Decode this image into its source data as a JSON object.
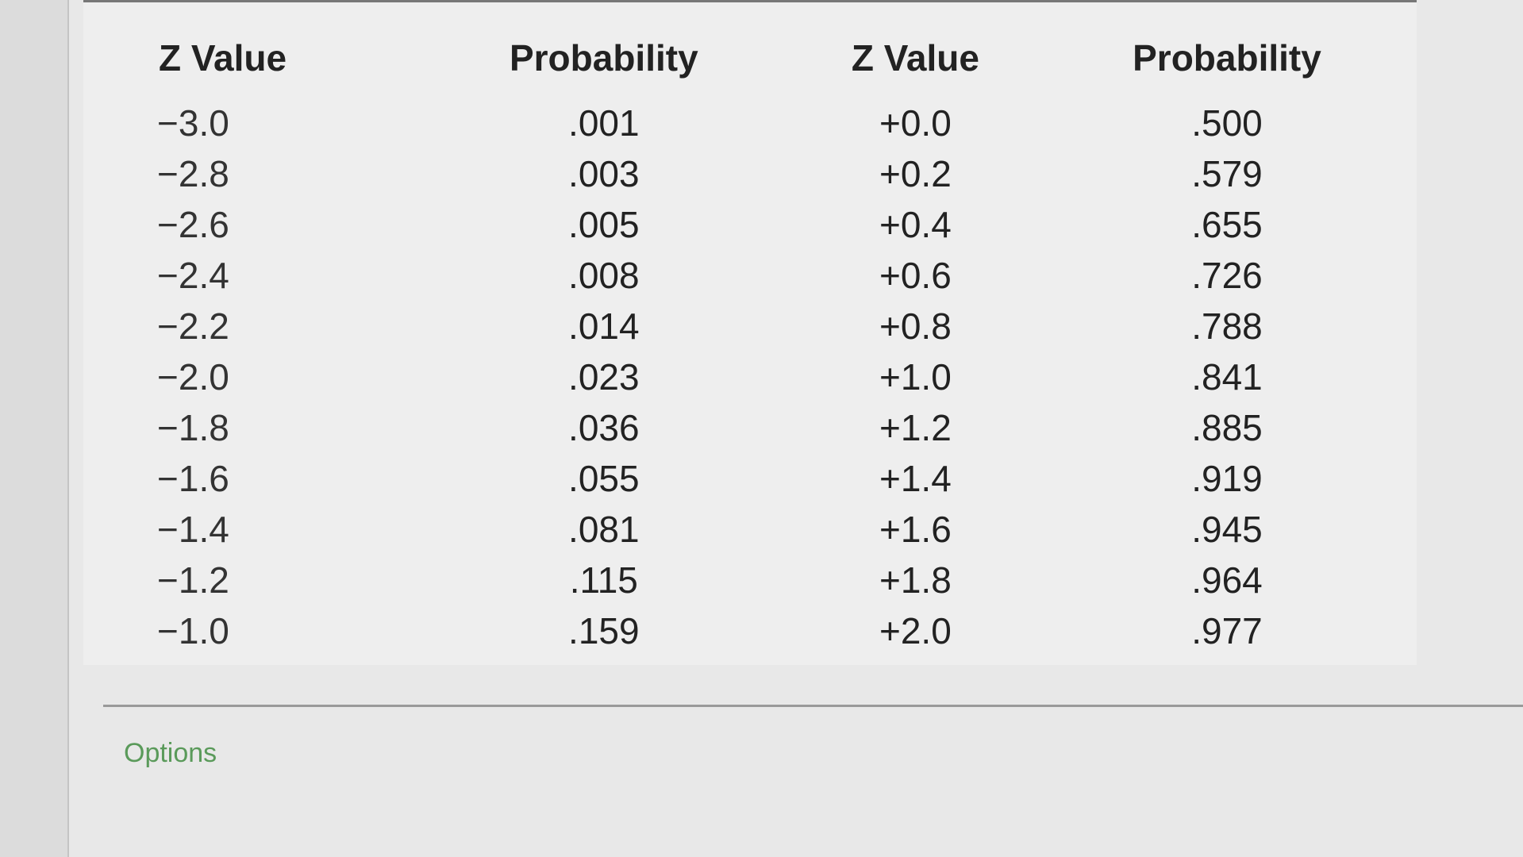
{
  "table": {
    "header": [
      "Z Value",
      "Probability",
      "Z Value",
      "Probability"
    ],
    "rows": [
      [
        "−3.0",
        ".001",
        "+0.0",
        ".500"
      ],
      [
        "−2.8",
        ".003",
        "+0.2",
        ".579"
      ],
      [
        "−2.6",
        ".005",
        "+0.4",
        ".655"
      ],
      [
        "−2.4",
        ".008",
        "+0.6",
        ".726"
      ],
      [
        "−2.2",
        ".014",
        "+0.8",
        ".788"
      ],
      [
        "−2.0",
        ".023",
        "+1.0",
        ".841"
      ],
      [
        "−1.8",
        ".036",
        "+1.2",
        ".885"
      ],
      [
        "−1.6",
        ".055",
        "+1.4",
        ".919"
      ],
      [
        "−1.4",
        ".081",
        "+1.6",
        ".945"
      ],
      [
        "−1.2",
        ".115",
        "+1.8",
        ".964"
      ],
      [
        "−1.0",
        ".159",
        "+2.0",
        ".977"
      ]
    ]
  },
  "options": "Options"
}
